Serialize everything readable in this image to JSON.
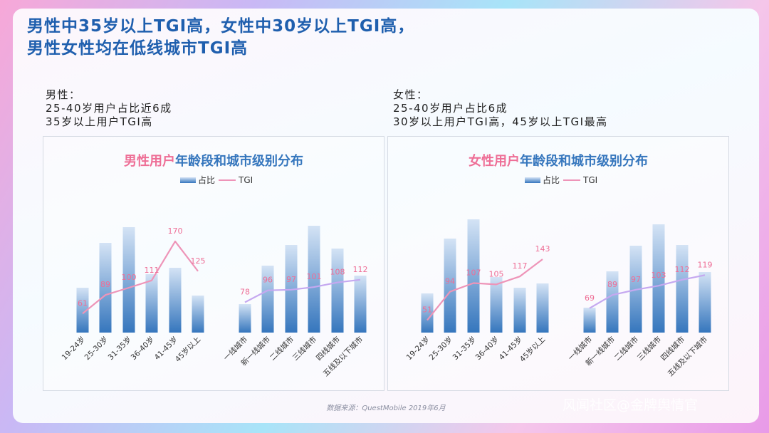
{
  "headline": {
    "line1": "男性中35岁以上TGI高，女性中30岁以上TGI高，",
    "line2": "男性女性均在低线城市TGI高"
  },
  "male_note": {
    "label": "男性：",
    "line1": "25-40岁用户占比近6成",
    "line2": "35岁以上用户TGI高"
  },
  "female_note": {
    "label": "女性：",
    "line1": "25-40岁用户占比6成",
    "line2": "30岁以上用户TGI高，45岁以上TGI最高"
  },
  "source": "数据来源：QuestMobile 2019年6月",
  "watermark": "风闻社区@金牌舆情官",
  "colors": {
    "blue": "#3576bd",
    "pink": "#ee6e96",
    "tgi_age": "#ee94b8",
    "tgi_city": "#c5a8f0"
  },
  "chart_data": [
    {
      "type": "bar",
      "title_highlight": "男性用户",
      "title_rest": "年龄段和城市级别分布",
      "legend": [
        "占比",
        "TGI"
      ],
      "groups": [
        {
          "categories": [
            "19-24岁",
            "25-30岁",
            "31-35岁",
            "36-40岁",
            "41-45岁",
            "45岁以上"
          ],
          "share": [
            63,
            126,
            148,
            82,
            91,
            52
          ],
          "tgi": [
            61,
            89,
            100,
            111,
            170,
            125
          ]
        },
        {
          "categories": [
            "一线城市",
            "新一线城市",
            "二线城市",
            "三线城市",
            "四线城市",
            "五线及以下城市"
          ],
          "share": [
            40,
            94,
            123,
            150,
            118,
            80
          ],
          "tgi": [
            78,
            96,
            97,
            101,
            108,
            112
          ]
        }
      ]
    },
    {
      "type": "bar",
      "title_highlight": "女性用户",
      "title_rest": "年龄段和城市级别分布",
      "legend": [
        "占比",
        "TGI"
      ],
      "groups": [
        {
          "categories": [
            "19-24岁",
            "25-30岁",
            "31-35岁",
            "36-40岁",
            "41-45岁",
            "45岁以上"
          ],
          "share": [
            55,
            132,
            159,
            78,
            63,
            69
          ],
          "tgi": [
            51,
            94,
            107,
            105,
            117,
            143
          ]
        },
        {
          "categories": [
            "一线城市",
            "新一线城市",
            "二线城市",
            "三线城市",
            "四线城市",
            "五线及以下城市"
          ],
          "share": [
            35,
            86,
            122,
            152,
            123,
            85
          ],
          "tgi": [
            69,
            89,
            97,
            103,
            112,
            119
          ]
        }
      ]
    }
  ]
}
